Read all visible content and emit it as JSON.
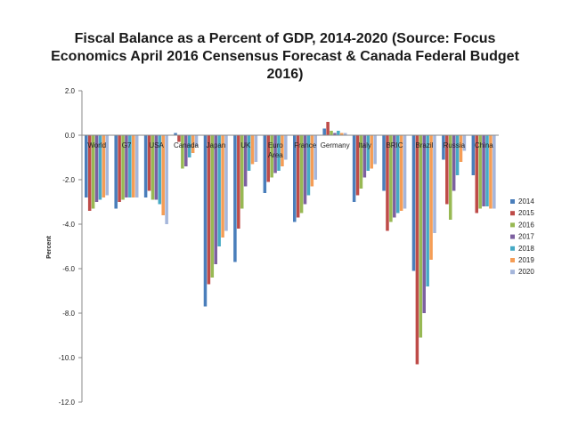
{
  "chart_data": {
    "type": "bar",
    "title_lines": [
      "Fiscal Balance as a Percent of GDP, 2014-2020 (Source: Focus",
      "Economics April 2016 Censensus Forecast & Canada Federal Budget",
      "2016)"
    ],
    "xlabel": "",
    "ylabel": "Percent",
    "ylim": [
      -12,
      2
    ],
    "yticks": [
      2,
      0,
      -2,
      -4,
      -6,
      -8,
      -10,
      -12
    ],
    "ytick_labels": [
      "2.0",
      "0.0",
      "-2.0",
      "-4.0",
      "-6.0",
      "-8.0",
      "-10.0",
      "-12.0"
    ],
    "grid": false,
    "legend_position": "right",
    "categories": [
      "World",
      "G7",
      "USA",
      "Canada",
      "Japan",
      "UK",
      "Euro Area",
      "France",
      "Germany",
      "Italy",
      "BRIC",
      "Brazil",
      "Russia",
      "China"
    ],
    "category_labels": [
      [
        "World"
      ],
      [
        "G7"
      ],
      [
        "USA"
      ],
      [
        "Canada"
      ],
      [
        "Japan"
      ],
      [
        "UK"
      ],
      [
        "Euro",
        "Area"
      ],
      [
        "France"
      ],
      [
        "Germany"
      ],
      [
        "Italy"
      ],
      [
        "BRIC"
      ],
      [
        "Brazil"
      ],
      [
        "Russia"
      ],
      [
        "China"
      ]
    ],
    "series": [
      {
        "name": "2014",
        "color": "#4a7ebb",
        "values": [
          -2.8,
          -3.3,
          -2.8,
          0.1,
          -7.7,
          -5.7,
          -2.6,
          -3.9,
          0.3,
          -3.0,
          -2.5,
          -6.1,
          -1.1,
          -1.8
        ]
      },
      {
        "name": "2015",
        "color": "#be4b48",
        "values": [
          -3.4,
          -3.0,
          -2.5,
          -0.3,
          -6.7,
          -4.2,
          -2.1,
          -3.7,
          0.6,
          -2.7,
          -4.3,
          -10.3,
          -3.1,
          -3.5
        ]
      },
      {
        "name": "2016",
        "color": "#98b954",
        "values": [
          -3.3,
          -2.9,
          -2.9,
          -1.5,
          -6.4,
          -3.3,
          -1.9,
          -3.5,
          0.2,
          -2.4,
          -3.9,
          -9.1,
          -3.8,
          -3.3
        ]
      },
      {
        "name": "2017",
        "color": "#7d60a0",
        "values": [
          -3.0,
          -2.8,
          -2.9,
          -1.4,
          -5.8,
          -2.3,
          -1.7,
          -3.1,
          0.1,
          -1.9,
          -3.7,
          -8.0,
          -2.5,
          -3.2
        ]
      },
      {
        "name": "2018",
        "color": "#46aac5",
        "values": [
          -2.9,
          -2.8,
          -3.1,
          -1.0,
          -5.0,
          -1.6,
          -1.6,
          -2.7,
          0.2,
          -1.6,
          -3.5,
          -6.8,
          -1.8,
          -3.2
        ]
      },
      {
        "name": "2019",
        "color": "#f59d56",
        "values": [
          -2.8,
          -2.8,
          -3.6,
          -0.8,
          -4.6,
          -1.3,
          -1.4,
          -2.3,
          0.1,
          -1.5,
          -3.4,
          -5.6,
          -1.2,
          -3.3
        ]
      },
      {
        "name": "2020",
        "color": "#a5b6db",
        "values": [
          -2.7,
          -2.8,
          -4.0,
          -0.5,
          -4.3,
          -1.2,
          -1.1,
          -2.0,
          0.1,
          -1.3,
          -3.3,
          -4.4,
          -0.7,
          -3.3
        ]
      }
    ]
  }
}
